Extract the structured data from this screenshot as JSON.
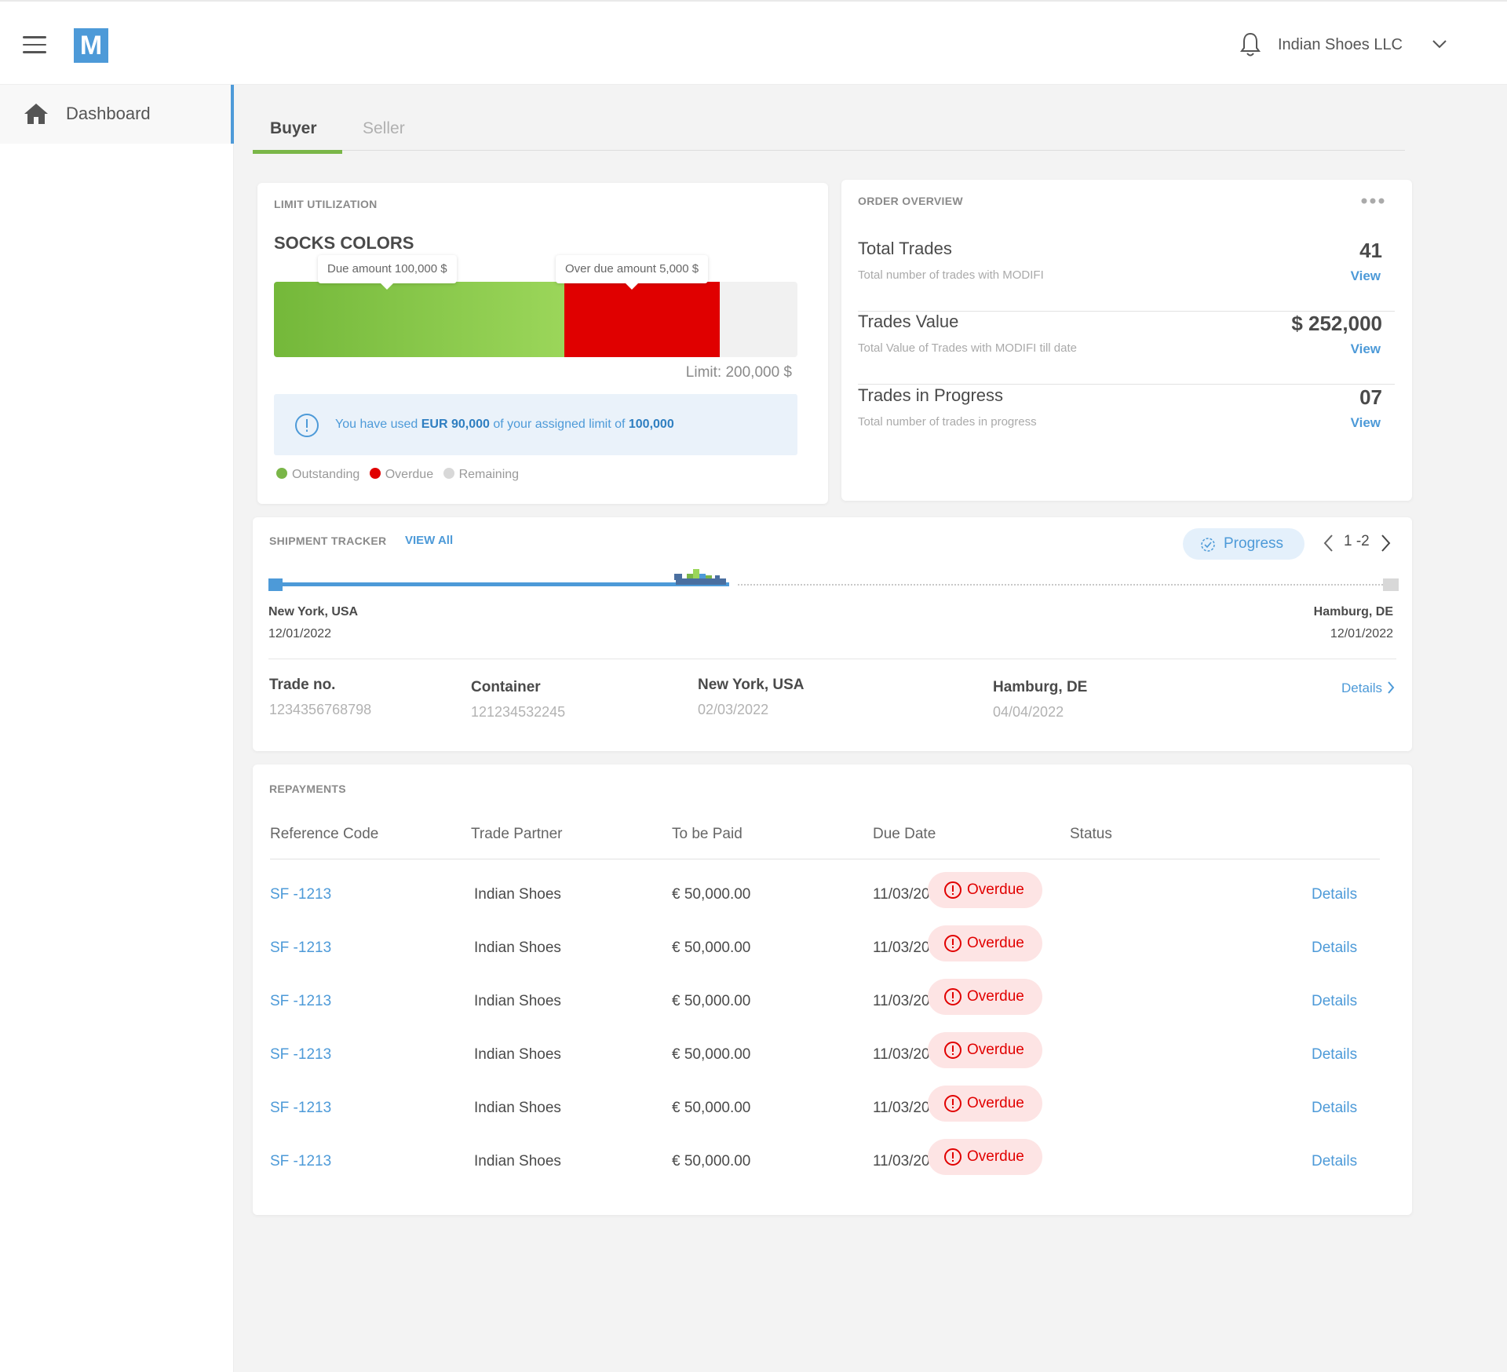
{
  "header": {
    "logo_letter": "M",
    "company": "Indian Shoes LLC"
  },
  "sidebar": {
    "items": [
      {
        "label": "Dashboard"
      }
    ]
  },
  "tabs": [
    {
      "label": "Buyer",
      "active": true
    },
    {
      "label": "Seller",
      "active": false
    }
  ],
  "limit_utilization": {
    "title": "LIMIT UTILIZATION",
    "subtitle": "SOCKS COLORS",
    "due_tooltip": "Due amount 100,000 $",
    "overdue_tooltip": "Over due amount 5,000 $",
    "limit_label": "Limit: 200,000 $",
    "outstanding_fraction": 0.555,
    "overdue_fraction": 0.297,
    "info": {
      "prefix": "You have used ",
      "used": "EUR 90,000",
      "middle": " of your assigned limit of ",
      "limit": "100,000"
    },
    "legend": [
      {
        "label": "Outstanding",
        "color": "#7ab648"
      },
      {
        "label": "Overdue",
        "color": "#e00000"
      },
      {
        "label": "Remaining",
        "color": "#d8d8d8"
      }
    ]
  },
  "order_overview": {
    "title": "ORDER OVERVIEW",
    "rows": [
      {
        "label": "Total Trades",
        "desc": "Total number of trades with MODIFI",
        "value": "41",
        "link": "View"
      },
      {
        "label": "Trades Value",
        "desc": "Total Value of Trades with MODIFI till date",
        "value": "$ 252,000",
        "link": "View"
      },
      {
        "label": "Trades in Progress",
        "desc": "Total number of trades in progress",
        "value": "07",
        "link": "View"
      }
    ]
  },
  "shipment_tracker": {
    "title": "SHIPMENT TRACKER",
    "view_all": "VIEW All",
    "progress_label": "Progress",
    "pagination": "1 -2",
    "progress_fraction": 0.41,
    "origin": {
      "city": "New York, USA",
      "date": "12/01/2022"
    },
    "destination": {
      "city": "Hamburg, DE",
      "date": "12/01/2022"
    },
    "trade_no": {
      "label": "Trade no.",
      "value": "1234356768798"
    },
    "container": {
      "label": "Container",
      "value": "121234532245"
    },
    "departure": {
      "label": "New York, USA",
      "value": "02/03/2022"
    },
    "arrival": {
      "label": "Hamburg, DE",
      "value": "04/04/2022"
    },
    "details_label": "Details"
  },
  "repayments": {
    "title": "REPAYMENTS",
    "columns": [
      "Reference Code",
      "Trade Partner",
      "To be Paid",
      "Due Date",
      "Status"
    ],
    "rows": [
      {
        "ref": "SF -1213",
        "partner": "Indian Shoes",
        "amount": "€ 50,000.00",
        "due": "11/03/2022",
        "status": "Overdue",
        "details": "Details"
      },
      {
        "ref": "SF -1213",
        "partner": "Indian Shoes",
        "amount": "€ 50,000.00",
        "due": "11/03/2022",
        "status": "Overdue",
        "details": "Details"
      },
      {
        "ref": "SF -1213",
        "partner": "Indian Shoes",
        "amount": "€ 50,000.00",
        "due": "11/03/2022",
        "status": "Overdue",
        "details": "Details"
      },
      {
        "ref": "SF -1213",
        "partner": "Indian Shoes",
        "amount": "€ 50,000.00",
        "due": "11/03/2022",
        "status": "Overdue",
        "details": "Details"
      },
      {
        "ref": "SF -1213",
        "partner": "Indian Shoes",
        "amount": "€ 50,000.00",
        "due": "11/03/2022",
        "status": "Overdue",
        "details": "Details"
      },
      {
        "ref": "SF -1213",
        "partner": "Indian Shoes",
        "amount": "€ 50,000.00",
        "due": "11/03/2022",
        "status": "Overdue",
        "details": "Details"
      }
    ]
  }
}
